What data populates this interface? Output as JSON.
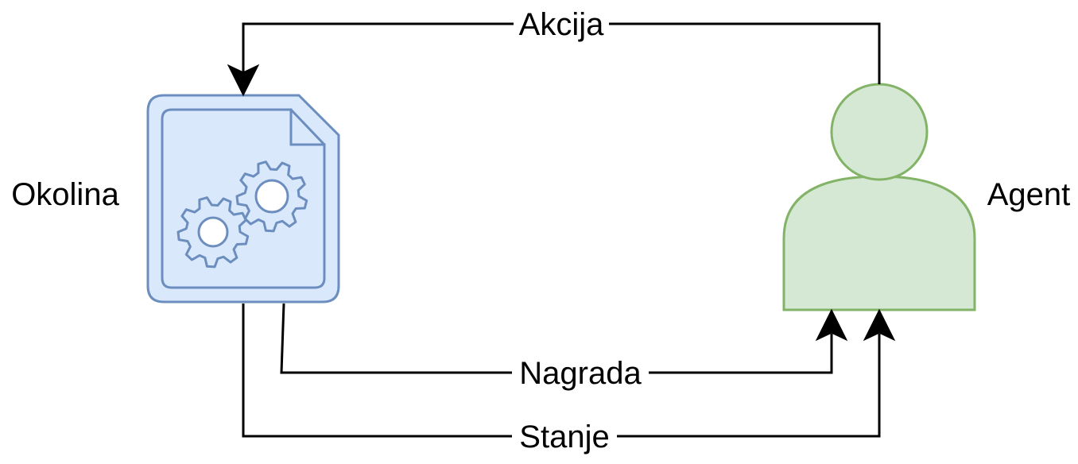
{
  "diagram": {
    "nodes": {
      "environment": {
        "label": "Okolina",
        "icon": "gear-document-icon",
        "fill": "#dae8fc",
        "stroke": "#6c8ebf"
      },
      "agent": {
        "label": "Agent",
        "icon": "user-icon",
        "fill": "#d5e8d4",
        "stroke": "#82b366"
      }
    },
    "edges": {
      "action": {
        "label": "Akcija",
        "from": "agent",
        "to": "environment"
      },
      "reward": {
        "label": "Nagrada",
        "from": "environment",
        "to": "agent"
      },
      "state": {
        "label": "Stanje",
        "from": "environment",
        "to": "agent"
      }
    },
    "edge_color": "#000000"
  }
}
